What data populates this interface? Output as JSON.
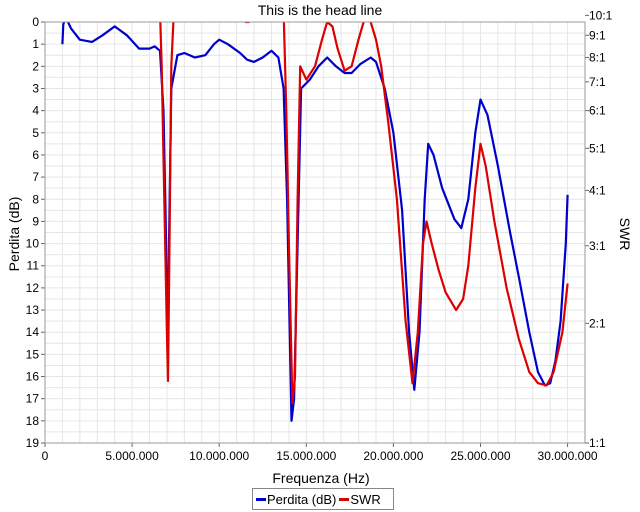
{
  "chart_data": {
    "type": "line",
    "title": "This is the head line",
    "xlabel": "Frequenza (Hz)",
    "ylabel_left": "Perdita (dB)",
    "ylabel_right": "SWR",
    "xlim": [
      0,
      31000000
    ],
    "ylim_left": [
      0,
      19
    ],
    "left_axis_inverted": true,
    "right_axis_scale": "nonlinear",
    "grid": true,
    "legend_position": "bottom",
    "x_ticks": [
      {
        "v": 0,
        "label": "0"
      },
      {
        "v": 5000000,
        "label": "5.000.000"
      },
      {
        "v": 10000000,
        "label": "10.000.000"
      },
      {
        "v": 15000000,
        "label": "15.000.000"
      },
      {
        "v": 20000000,
        "label": "20.000.000"
      },
      {
        "v": 25000000,
        "label": "25.000.000"
      },
      {
        "v": 30000000,
        "label": "30.000.000"
      }
    ],
    "y_left_ticks": [
      0,
      1,
      2,
      3,
      4,
      5,
      6,
      7,
      8,
      9,
      10,
      11,
      12,
      13,
      14,
      15,
      16,
      17,
      18,
      19
    ],
    "y_right_ticks": [
      {
        "label": "10:1",
        "at_db": -0.3
      },
      {
        "label": "9:1",
        "at_db": 0.6
      },
      {
        "label": "8:1",
        "at_db": 1.6
      },
      {
        "label": "7:1",
        "at_db": 2.7
      },
      {
        "label": "6:1",
        "at_db": 4.0
      },
      {
        "label": "5:1",
        "at_db": 5.7
      },
      {
        "label": "4:1",
        "at_db": 7.6
      },
      {
        "label": "3:1",
        "at_db": 10.1
      },
      {
        "label": "2:1",
        "at_db": 13.6
      },
      {
        "label": "1:1",
        "at_db": 19.0
      }
    ],
    "series": [
      {
        "name": "Perdita (dB)",
        "color": "#0000cc",
        "axis": "left",
        "points": [
          [
            1000000,
            1.0
          ],
          [
            1050000,
            0.1
          ],
          [
            1200000,
            -0.2
          ],
          [
            1500000,
            0.3
          ],
          [
            2000000,
            0.8
          ],
          [
            2700000,
            0.9
          ],
          [
            3300000,
            0.6
          ],
          [
            4000000,
            0.2
          ],
          [
            4700000,
            0.6
          ],
          [
            5400000,
            1.2
          ],
          [
            6000000,
            1.2
          ],
          [
            6300000,
            1.1
          ],
          [
            6600000,
            1.3
          ],
          [
            6800000,
            4.0
          ],
          [
            6950000,
            10.0
          ],
          [
            7050000,
            15.5
          ],
          [
            7120000,
            10.0
          ],
          [
            7250000,
            3.0
          ],
          [
            7600000,
            1.5
          ],
          [
            8000000,
            1.4
          ],
          [
            8600000,
            1.6
          ],
          [
            9200000,
            1.5
          ],
          [
            9700000,
            1.0
          ],
          [
            10000000,
            0.8
          ],
          [
            10500000,
            1.0
          ],
          [
            11200000,
            1.4
          ],
          [
            11600000,
            1.7
          ],
          [
            12000000,
            1.8
          ],
          [
            12500000,
            1.6
          ],
          [
            13000000,
            1.3
          ],
          [
            13400000,
            1.6
          ],
          [
            13700000,
            3.0
          ],
          [
            13900000,
            8.0
          ],
          [
            14050000,
            14.0
          ],
          [
            14150000,
            18.0
          ],
          [
            14300000,
            17.0
          ],
          [
            14500000,
            10.0
          ],
          [
            14700000,
            3.0
          ],
          [
            15200000,
            2.6
          ],
          [
            15700000,
            2.0
          ],
          [
            16200000,
            1.6
          ],
          [
            16700000,
            2.0
          ],
          [
            17200000,
            2.3
          ],
          [
            17600000,
            2.3
          ],
          [
            18100000,
            1.9
          ],
          [
            18700000,
            1.6
          ],
          [
            19000000,
            1.8
          ],
          [
            19500000,
            3.0
          ],
          [
            20000000,
            5.0
          ],
          [
            20500000,
            8.5
          ],
          [
            20900000,
            14.0
          ],
          [
            21200000,
            16.6
          ],
          [
            21500000,
            14.0
          ],
          [
            21800000,
            8.0
          ],
          [
            22000000,
            5.5
          ],
          [
            22300000,
            6.0
          ],
          [
            22800000,
            7.5
          ],
          [
            23500000,
            8.9
          ],
          [
            23900000,
            9.3
          ],
          [
            24300000,
            8.0
          ],
          [
            24700000,
            5.0
          ],
          [
            25000000,
            3.5
          ],
          [
            25400000,
            4.2
          ],
          [
            26000000,
            6.5
          ],
          [
            26700000,
            9.5
          ],
          [
            27200000,
            11.5
          ],
          [
            27800000,
            14.0
          ],
          [
            28300000,
            15.8
          ],
          [
            28700000,
            16.4
          ],
          [
            29000000,
            16.3
          ],
          [
            29300000,
            15.3
          ],
          [
            29600000,
            13.5
          ],
          [
            29900000,
            10.0
          ],
          [
            30000000,
            7.8
          ]
        ]
      },
      {
        "name": "SWR",
        "color": "#dd0000",
        "axis": "left",
        "points": [
          [
            6600000,
            -0.5
          ],
          [
            6700000,
            2.0
          ],
          [
            6850000,
            8.0
          ],
          [
            7000000,
            14.0
          ],
          [
            7060000,
            16.2
          ],
          [
            7150000,
            10.0
          ],
          [
            7250000,
            2.0
          ],
          [
            7400000,
            -0.5
          ],
          [
            11500000,
            -0.2
          ],
          [
            11520000,
            0.0
          ],
          [
            11700000,
            0.0
          ],
          [
            11750000,
            -0.3
          ],
          [
            13700000,
            -0.5
          ],
          [
            13850000,
            4.0
          ],
          [
            14000000,
            10.0
          ],
          [
            14200000,
            17.2
          ],
          [
            14350000,
            16.0
          ],
          [
            14500000,
            8.0
          ],
          [
            14650000,
            2.0
          ],
          [
            15000000,
            2.6
          ],
          [
            15500000,
            2.0
          ],
          [
            15900000,
            0.8
          ],
          [
            16200000,
            0.0
          ],
          [
            16500000,
            0.2
          ],
          [
            16800000,
            1.2
          ],
          [
            17200000,
            2.2
          ],
          [
            17600000,
            2.0
          ],
          [
            18000000,
            0.8
          ],
          [
            18400000,
            -0.3
          ],
          [
            18700000,
            0.0
          ],
          [
            19000000,
            0.8
          ],
          [
            19300000,
            2.0
          ],
          [
            19700000,
            4.5
          ],
          [
            20200000,
            8.0
          ],
          [
            20700000,
            13.5
          ],
          [
            21100000,
            16.3
          ],
          [
            21400000,
            14.0
          ],
          [
            21700000,
            10.0
          ],
          [
            21900000,
            9.0
          ],
          [
            22200000,
            10.0
          ],
          [
            22600000,
            11.2
          ],
          [
            23000000,
            12.2
          ],
          [
            23600000,
            13.0
          ],
          [
            24000000,
            12.5
          ],
          [
            24300000,
            11.0
          ],
          [
            24700000,
            7.5
          ],
          [
            25000000,
            5.5
          ],
          [
            25300000,
            6.5
          ],
          [
            25800000,
            9.0
          ],
          [
            26500000,
            12.0
          ],
          [
            27200000,
            14.3
          ],
          [
            27800000,
            15.8
          ],
          [
            28300000,
            16.3
          ],
          [
            28800000,
            16.4
          ],
          [
            29200000,
            15.8
          ],
          [
            29700000,
            14.0
          ],
          [
            30000000,
            11.8
          ]
        ]
      }
    ]
  }
}
